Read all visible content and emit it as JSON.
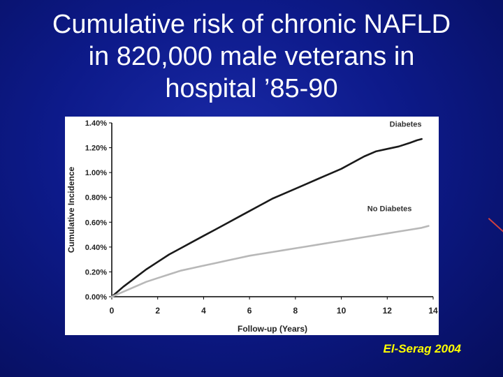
{
  "title_lines": [
    "Cumulative risk of chronic NAFLD",
    "in 820,000 male veterans in",
    "hospital ’85-90"
  ],
  "citation": "El-Serag 2004",
  "chart_data": {
    "type": "line",
    "xlabel": "Follow-up (Years)",
    "ylabel": "Cumulative Incidence",
    "xlim": [
      0,
      14
    ],
    "ylim": [
      0,
      1.4
    ],
    "x_ticks": [
      "0",
      "2",
      "4",
      "6",
      "8",
      "10",
      "12",
      "14"
    ],
    "y_ticks": [
      "0.00%",
      "0.20%",
      "0.40%",
      "0.60%",
      "0.80%",
      "1.00%",
      "1.20%",
      "1.40%"
    ],
    "grid": false,
    "series": [
      {
        "name": "Diabetes",
        "color": "#1a1a1a",
        "x": [
          0,
          0.5,
          1,
          1.5,
          2,
          2.5,
          3,
          3.5,
          4,
          4.5,
          5,
          5.5,
          6,
          6.5,
          7,
          7.5,
          8,
          8.5,
          9,
          9.5,
          10,
          10.5,
          11,
          11.5,
          12,
          12.5,
          13,
          13.3,
          13.5
        ],
        "values": [
          0,
          0.08,
          0.15,
          0.22,
          0.28,
          0.34,
          0.39,
          0.44,
          0.49,
          0.54,
          0.59,
          0.64,
          0.69,
          0.74,
          0.79,
          0.83,
          0.87,
          0.91,
          0.95,
          0.99,
          1.03,
          1.08,
          1.13,
          1.17,
          1.19,
          1.21,
          1.24,
          1.26,
          1.27
        ]
      },
      {
        "name": "No Diabetes",
        "color": "#b8b8b8",
        "x": [
          0,
          0.5,
          1,
          1.5,
          2,
          2.5,
          3,
          3.5,
          4,
          4.5,
          5,
          5.5,
          6,
          6.5,
          7,
          7.5,
          8,
          8.5,
          9,
          9.5,
          10,
          10.5,
          11,
          11.5,
          12,
          12.5,
          13,
          13.5,
          13.8
        ],
        "values": [
          0,
          0.04,
          0.08,
          0.12,
          0.15,
          0.18,
          0.21,
          0.23,
          0.25,
          0.27,
          0.29,
          0.31,
          0.33,
          0.345,
          0.36,
          0.375,
          0.39,
          0.405,
          0.42,
          0.435,
          0.45,
          0.465,
          0.48,
          0.495,
          0.51,
          0.525,
          0.54,
          0.555,
          0.57
        ]
      }
    ]
  }
}
